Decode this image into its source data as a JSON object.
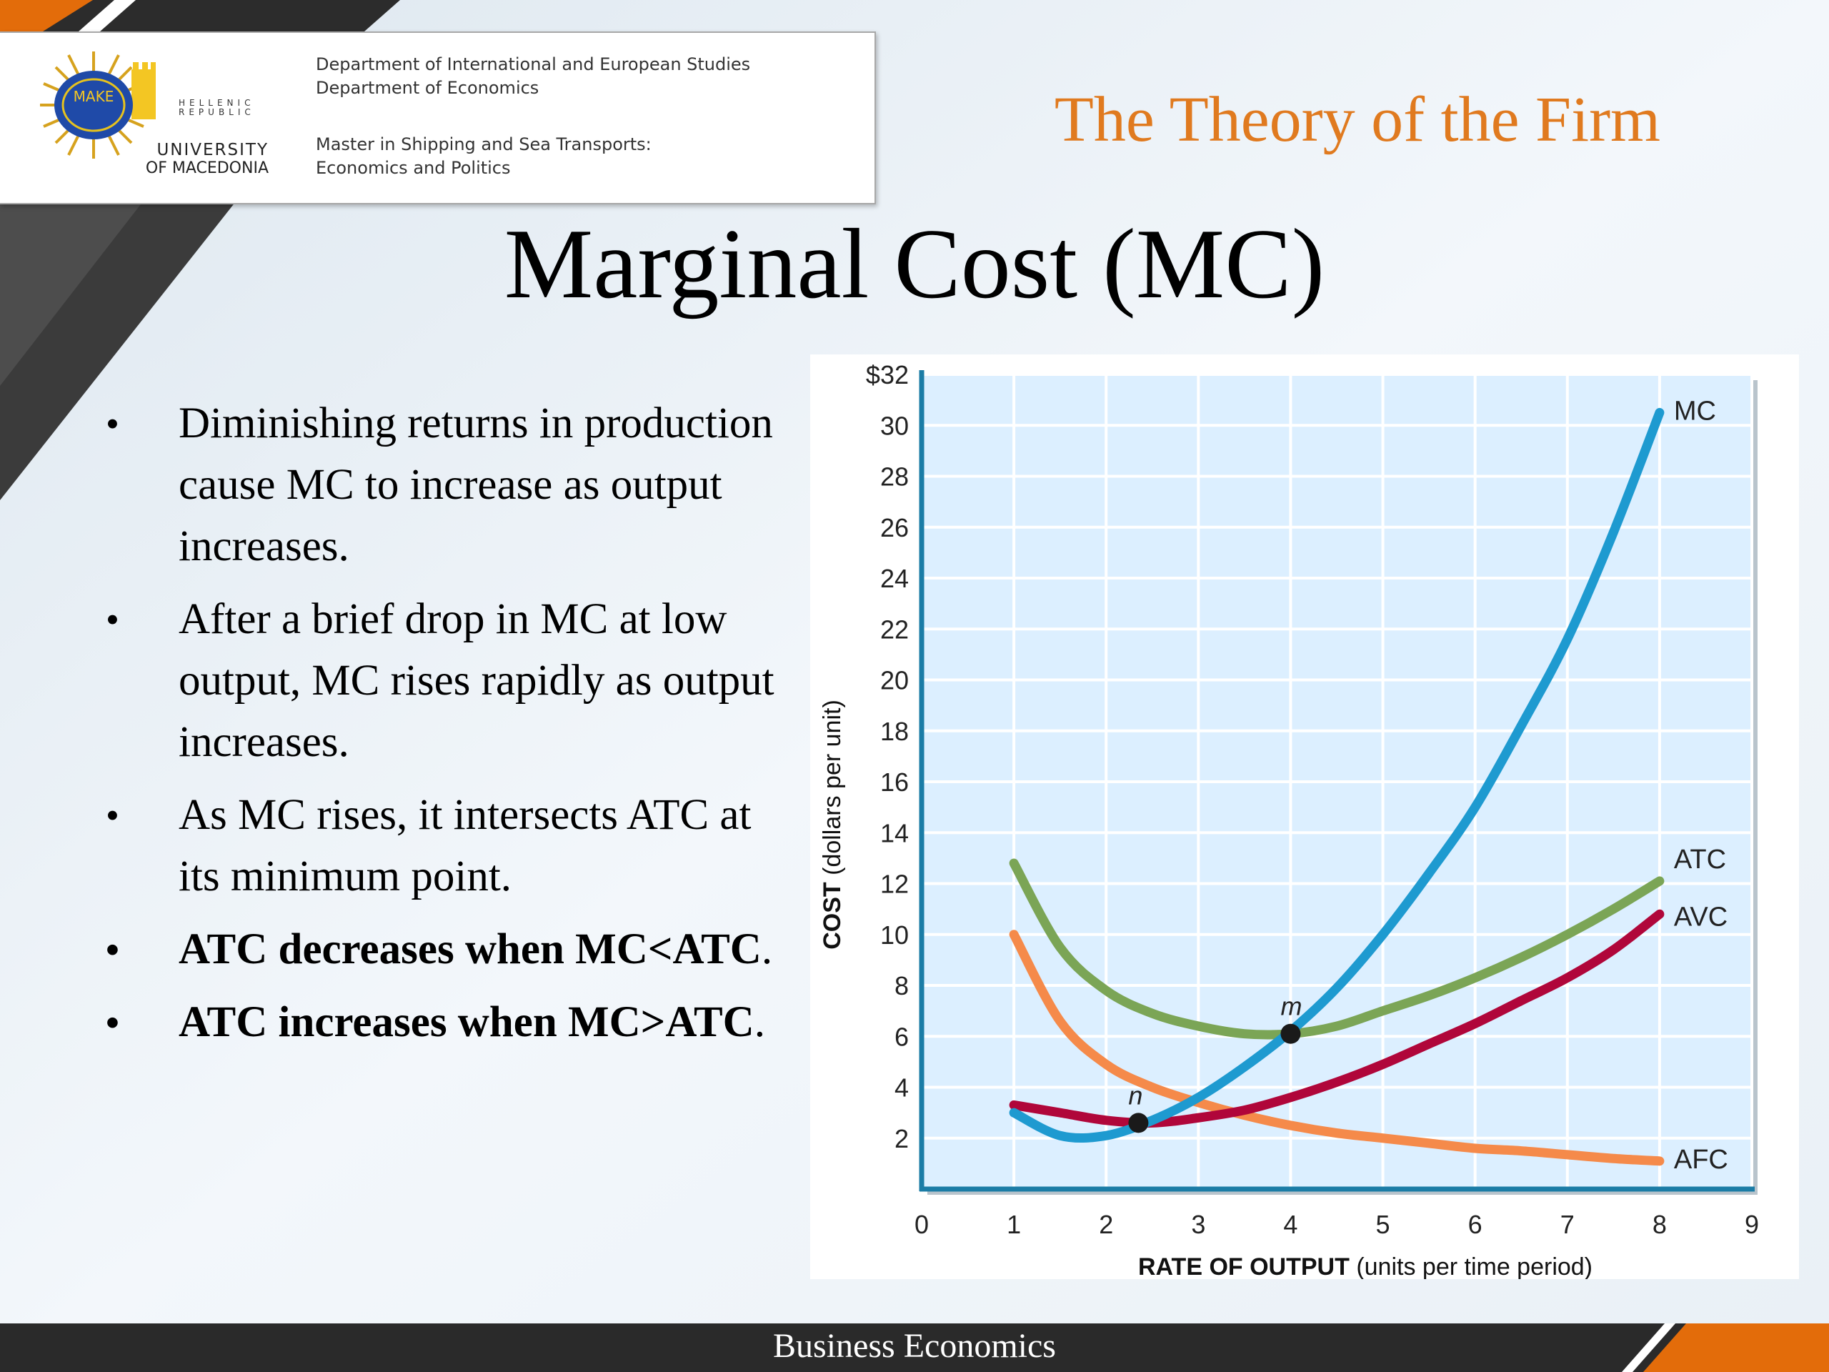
{
  "header": {
    "hellenic_republic": "HELLENIC REPUBLIC",
    "university_line1": "UNIVERSITY",
    "university_line2": "OF MACEDONIA",
    "logo_text": "MAKE",
    "dept_line1": "Department of International and European Studies",
    "dept_line2": "Department of Economics",
    "master_line1": "Master in Shipping and Sea Transports:",
    "master_line2": "Economics and Politics"
  },
  "slide": {
    "section_title": "The Theory of the Firm",
    "title": "Marginal Cost (MC)",
    "footer": "Business Economics"
  },
  "bullets": [
    {
      "text": "Diminishing returns in production cause MC to increase as output increases."
    },
    {
      "text": "After a brief drop in MC at low output, MC rises rapidly as output increases."
    },
    {
      "text": "As MC rises, it intersects ATC at its minimum point."
    },
    {
      "text": "ATC decreases when MC<ATC",
      "tail": "."
    },
    {
      "text": "ATC increases when MC>ATC",
      "tail": "."
    }
  ],
  "colors": {
    "accent_orange": "#e07a1f",
    "mc": "#1e9ad0",
    "atc": "#7ba556",
    "avc": "#b0063a",
    "afc": "#f58a4a",
    "axis": "#1b7ca6",
    "plot_bg": "#dcefff"
  },
  "chart_data": {
    "type": "line",
    "xlabel_bold": "RATE OF OUTPUT",
    "xlabel_rest": " (units per time period)",
    "ylabel_bold": "COST",
    "ylabel_rest": " (dollars per unit)",
    "xlim": [
      0,
      9
    ],
    "ylim": [
      0,
      32
    ],
    "x_ticks": [
      "0",
      "1",
      "2",
      "3",
      "4",
      "5",
      "6",
      "7",
      "8",
      "9"
    ],
    "y_ticks": [
      "$32",
      "30",
      "28",
      "26",
      "24",
      "22",
      "20",
      "18",
      "16",
      "14",
      "12",
      "10",
      "8",
      "6",
      "4",
      "2"
    ],
    "y_tick_values": [
      32,
      30,
      28,
      26,
      24,
      22,
      20,
      18,
      16,
      14,
      12,
      10,
      8,
      6,
      4,
      2
    ],
    "grid": true,
    "series": [
      {
        "name": "MC",
        "x": [
          1,
          1.5,
          2,
          2.5,
          3,
          3.5,
          4,
          4.5,
          5,
          5.5,
          6,
          6.5,
          7,
          7.5,
          8
        ],
        "y": [
          3,
          2.1,
          2.1,
          2.7,
          3.6,
          4.8,
          6.2,
          7.9,
          10,
          12.4,
          15,
          18.2,
          21.6,
          25.8,
          30.5
        ]
      },
      {
        "name": "ATC",
        "x": [
          1,
          1.5,
          2,
          2.5,
          3,
          3.5,
          4,
          4.5,
          5,
          5.5,
          6,
          6.5,
          7,
          7.5,
          8
        ],
        "y": [
          12.8,
          9.5,
          7.8,
          6.9,
          6.4,
          6.1,
          6.1,
          6.4,
          7,
          7.6,
          8.3,
          9.1,
          10,
          11,
          12.1
        ]
      },
      {
        "name": "AVC",
        "x": [
          1,
          1.5,
          2,
          2.5,
          3,
          3.5,
          4,
          4.5,
          5,
          5.5,
          6,
          6.5,
          7,
          7.5,
          8
        ],
        "y": [
          3.3,
          3,
          2.7,
          2.6,
          2.8,
          3.1,
          3.6,
          4.2,
          4.9,
          5.7,
          6.5,
          7.4,
          8.3,
          9.4,
          10.8
        ]
      },
      {
        "name": "AFC",
        "x": [
          1,
          1.5,
          2,
          2.5,
          3,
          3.5,
          4,
          4.5,
          5,
          5.5,
          6,
          6.5,
          7,
          7.5,
          8
        ],
        "y": [
          10,
          6.6,
          4.9,
          4,
          3.4,
          2.9,
          2.5,
          2.2,
          2,
          1.8,
          1.6,
          1.5,
          1.35,
          1.2,
          1.1
        ]
      }
    ],
    "points": [
      {
        "label": "m",
        "x": 4,
        "y": 6.1
      },
      {
        "label": "n",
        "x": 2.35,
        "y": 2.6
      }
    ]
  }
}
